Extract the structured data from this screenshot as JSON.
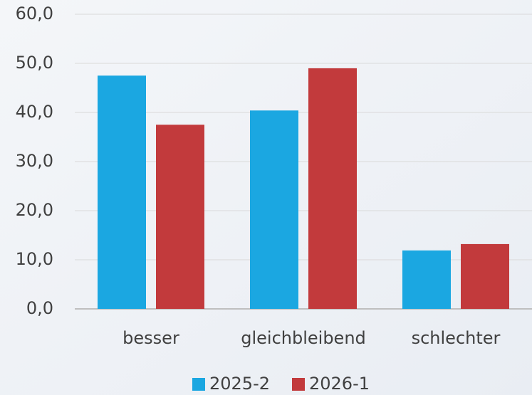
{
  "chart_data": {
    "type": "bar",
    "categories": [
      "besser",
      "gleichbleibend",
      "schlechter"
    ],
    "series": [
      {
        "name": "2025-2",
        "color": "#1ba7e1",
        "values": [
          47.5,
          40.4,
          11.9
        ]
      },
      {
        "name": "2026-1",
        "color": "#c23a3c",
        "values": [
          37.5,
          49.0,
          13.2
        ]
      }
    ],
    "ylim": [
      0,
      60
    ],
    "yticks": [
      {
        "value": 0,
        "label": "0,0"
      },
      {
        "value": 10,
        "label": "10,0"
      },
      {
        "value": 20,
        "label": "20,0"
      },
      {
        "value": 30,
        "label": "30,0"
      },
      {
        "value": 40,
        "label": "40,0"
      },
      {
        "value": 50,
        "label": "50,0"
      },
      {
        "value": 60,
        "label": "60,0"
      }
    ],
    "grid": true
  }
}
